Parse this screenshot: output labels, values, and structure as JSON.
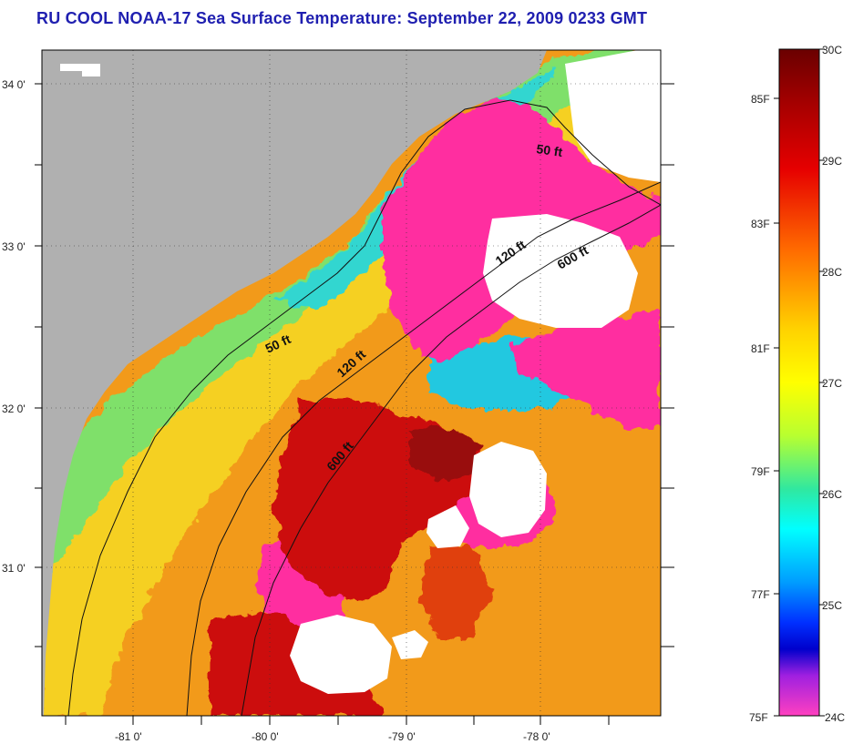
{
  "title": "RU COOL  NOAA-17  Sea Surface Temperature:  September 22, 2009 0233 GMT",
  "map": {
    "lat_labels": [
      "34 0'",
      "33 0'",
      "32 0'",
      "31 0'"
    ],
    "lon_labels": [
      "-81 0'",
      "-80 0'",
      "-79 0'",
      "-78 0'"
    ],
    "contour_labels": [
      "50 ft",
      "120 ft",
      "600 ft",
      "50 ft",
      "120 ft",
      "600 ft"
    ],
    "colors": {
      "land": "#b0b0b0",
      "cloud": "#ffffff",
      "cold": "#ff2fa0",
      "warm": "#cc1010"
    }
  },
  "colorbar": {
    "fahrenheit_labels": [
      "85F",
      "83F",
      "81F",
      "79F",
      "77F",
      "75F"
    ],
    "celsius_labels": [
      "30C",
      "29C",
      "28C",
      "27C",
      "26C",
      "25C",
      "24C"
    ]
  }
}
